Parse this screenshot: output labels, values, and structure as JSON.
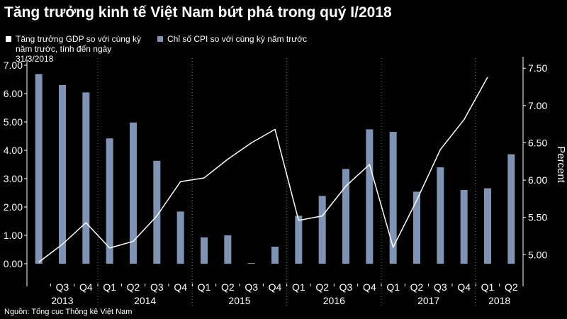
{
  "title": "Tăng trưởng kinh tế Việt Nam bứt phá trong quý I/2018",
  "source": "Nguồn: Tổng cục Thống kê Việt Nam",
  "colors": {
    "background": "#000000",
    "bar": "#7f93b5",
    "line": "#ffffff",
    "text": "#ffffff"
  },
  "chart_data": {
    "type": "bar",
    "title": "Tăng trưởng kinh tế Việt Nam bứt phá trong quý I/2018",
    "categories": [
      "Q2",
      "Q3",
      "Q4",
      "Q1",
      "Q2",
      "Q3",
      "Q4",
      "Q1",
      "Q2",
      "Q3",
      "Q4",
      "Q1",
      "Q2",
      "Q3",
      "Q4",
      "Q1",
      "Q2",
      "Q3",
      "Q4",
      "Q1",
      "Q2"
    ],
    "tick_labels": [
      "Q3",
      "Q4",
      "Q1",
      "Q2",
      "Q3",
      "Q4",
      "Q1",
      "Q2",
      "Q3",
      "Q4",
      "Q1",
      "Q2",
      "Q3",
      "Q4",
      "Q1",
      "Q2",
      "Q3",
      "Q4",
      "Q1",
      "Q2"
    ],
    "year_labels": [
      {
        "label": "2013",
        "start": 0,
        "end": 2
      },
      {
        "label": "2014",
        "start": 3,
        "end": 6
      },
      {
        "label": "2015",
        "start": 7,
        "end": 10
      },
      {
        "label": "2016",
        "start": 11,
        "end": 14
      },
      {
        "label": "2017",
        "start": 15,
        "end": 18
      },
      {
        "label": "2018",
        "start": 19,
        "end": 20
      }
    ],
    "series": [
      {
        "name": "Chỉ số CPI so với cùng kỳ năm trước",
        "kind": "bar",
        "axis": "left",
        "values": [
          6.69,
          6.3,
          6.04,
          4.42,
          4.98,
          3.63,
          1.84,
          0.93,
          1.0,
          0.02,
          0.6,
          1.69,
          2.39,
          3.34,
          4.74,
          4.65,
          2.54,
          3.4,
          2.6,
          2.66,
          3.86
        ]
      },
      {
        "name": "Tăng trưởng GDP so với cùng kỳ năm trước, tính đến ngày 31/3/2018",
        "kind": "line",
        "axis": "right",
        "values": [
          4.9,
          5.14,
          5.43,
          5.09,
          5.18,
          5.52,
          5.98,
          6.03,
          6.28,
          6.5,
          6.68,
          5.46,
          5.52,
          5.92,
          6.21,
          5.1,
          5.73,
          6.41,
          6.81,
          7.38,
          null
        ]
      }
    ],
    "y_left": {
      "ticks": [
        "0.00",
        "1.00",
        "2.00",
        "3.00",
        "4.00",
        "5.00",
        "6.00",
        "7.00"
      ],
      "ylim": [
        0,
        7
      ]
    },
    "y_right": {
      "label": "Percent",
      "ticks": [
        "5.00",
        "5.50",
        "6.00",
        "6.50",
        "7.00",
        "7.50"
      ],
      "ylim": [
        4.88,
        7.54
      ]
    },
    "legend_placement": "top-left",
    "grid": "vertical dotted at year boundaries"
  }
}
